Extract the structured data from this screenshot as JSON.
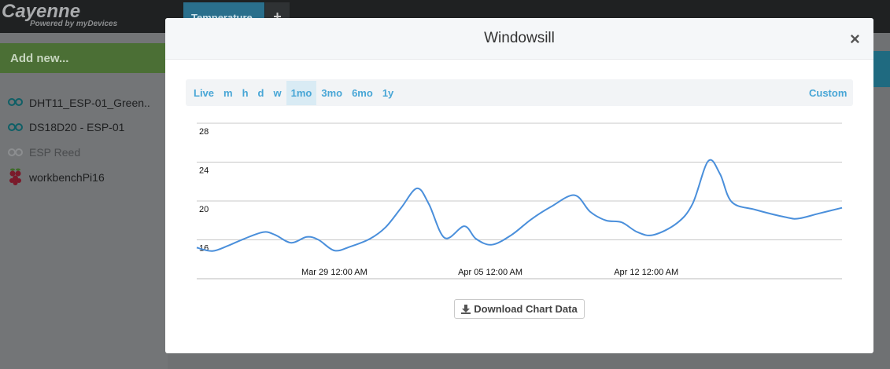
{
  "app": {
    "brand": "Cayenne",
    "tagline": "Powered by myDevices",
    "add_new": "Add new...",
    "devices": [
      "DHT11_ESP-01_Green..",
      "DS18D20 - ESP-01",
      "ESP Reed",
      "workbenchPi16"
    ],
    "tabs": [
      "Temperature",
      "+"
    ]
  },
  "modal": {
    "title": "Windowsill",
    "close": "×",
    "ranges": [
      "Live",
      "m",
      "h",
      "d",
      "w",
      "1mo",
      "3mo",
      "6mo",
      "1y"
    ],
    "active_range": "1mo",
    "custom": "Custom",
    "download": "Download Chart Data"
  },
  "chart_data": {
    "type": "line",
    "color": "#4a8fdb",
    "x": [
      -6.18,
      -5.48,
      -4.77,
      -4.06,
      -3.18,
      -2.65,
      -1.94,
      -1.24,
      -0.71,
      0,
      0.71,
      1.59,
      2.3,
      3.0,
      3.71,
      4.24,
      4.95,
      5.83,
      6.36,
      7.07,
      7.95,
      8.83,
      9.72,
      10.78,
      11.48,
      12.19,
      12.9,
      13.6,
      14.31,
      15.37,
      16.08,
      16.78,
      17.31,
      17.84,
      18.9,
      20.32,
      20.85,
      21.73,
      22.79
    ],
    "values": [
      15.2,
      14.85,
      15.4,
      16.1,
      16.8,
      16.5,
      15.7,
      16.3,
      16.0,
      14.9,
      15.3,
      16.1,
      17.3,
      19.3,
      21.3,
      19.7,
      16.2,
      17.4,
      16.1,
      15.5,
      16.5,
      18.1,
      19.4,
      20.6,
      18.9,
      18.0,
      17.8,
      16.8,
      16.5,
      17.7,
      19.7,
      24.1,
      22.8,
      19.9,
      19.1,
      18.3,
      18.2,
      18.7,
      19.3
    ],
    "xlim": [
      -6.18,
      22.79
    ],
    "xticks": [
      {
        "value": 0,
        "label": "Mar 29 12:00 AM"
      },
      {
        "value": 7,
        "label": "Apr 05 12:00 AM"
      },
      {
        "value": 14,
        "label": "Apr 12 12:00 AM"
      }
    ],
    "ylim": [
      12,
      28
    ],
    "yticks": [
      16,
      20,
      24,
      28
    ],
    "grid": true
  }
}
